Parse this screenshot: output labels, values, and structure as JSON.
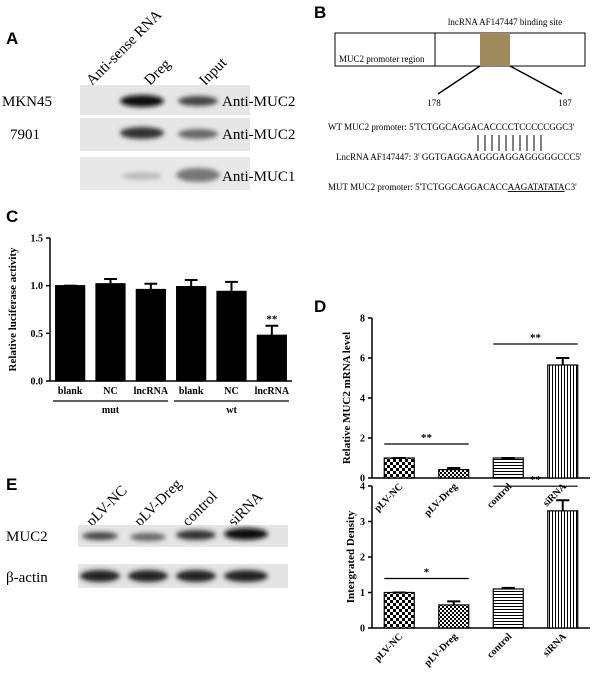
{
  "panel_a": {
    "label": "A",
    "columns": [
      "Anti-sense RNA",
      "Dreg",
      "Input"
    ],
    "rows": [
      {
        "cell_line": "MKN45",
        "antibody": "Anti-MUC2"
      },
      {
        "cell_line": "7901",
        "antibody": "Anti-MUC2"
      },
      {
        "antibody": "Anti-MUC1"
      }
    ]
  },
  "panel_b": {
    "label": "B",
    "site_label": "lncRNA AF147447 binding site",
    "region_label": "MUC2 promoter region",
    "start": 178,
    "end": 187,
    "wt": "WT MUC2 promoter: 5'TCTGGCAGGACACCCCTCCCCCGGC3'",
    "lnc": "LncRNA AF147447: 3' GGTGAGGAAGGGAGGAGGGGGCCC5'",
    "mut": {
      "prefix": "MUT MUC2 promoter: 5'TCTGGCAGGACACC",
      "mutated": "AAGATATATA",
      "suffix": "C3'"
    }
  },
  "panel_e_blot": {
    "label": "E",
    "lanes": [
      "pLV-NC",
      "pLV-Dreg",
      "control",
      "siRNA"
    ],
    "rows": [
      "MUC2",
      "β-actin"
    ]
  },
  "chart_data": [
    {
      "type": "bar",
      "panel_label": "C",
      "y_label": "Relative luciferase activity",
      "categories": [
        "blank",
        "NC",
        "lncRNA",
        "blank",
        "NC",
        "lncRNA"
      ],
      "group_labels": [
        "mut",
        "wt"
      ],
      "values": [
        1.0,
        1.02,
        0.96,
        0.99,
        0.94,
        0.48
      ],
      "errors": [
        0,
        0.05,
        0.06,
        0.07,
        0.1,
        0.1
      ],
      "color": "#000000",
      "ylim": [
        0,
        1.5
      ],
      "yticks": [
        {
          "value": 0,
          "label": "0.0"
        },
        0.5,
        {
          "value": 1,
          "label": "1.0"
        },
        1.5
      ],
      "annotations": [
        "**"
      ]
    },
    {
      "type": "bar",
      "panel_label": "D",
      "y_label": "Relative MUC2 mRNA level",
      "categories": [
        "pLV-NC",
        "pLV-Dreg",
        "control",
        "siRNA"
      ],
      "values": [
        1.0,
        0.42,
        1.0,
        5.65
      ],
      "errors": [
        0,
        0.08,
        0,
        0.35
      ],
      "patterns": [
        "checker",
        "checker-small",
        "hstripe",
        "vstripe"
      ],
      "color": "#000000",
      "ylim": [
        0,
        8
      ],
      "yticks": [
        0,
        2,
        4,
        6,
        8
      ],
      "annotations": [
        "**",
        "**"
      ]
    },
    {
      "type": "bar",
      "y_label": "Intergrated Density",
      "categories": [
        "pLV-NC",
        "pLV-Dreg",
        "control",
        "siRNA"
      ],
      "values": [
        1.0,
        0.65,
        1.1,
        3.3
      ],
      "errors": [
        0,
        0.1,
        0.03,
        0.3
      ],
      "patterns": [
        "checker",
        "checker-small",
        "hstripe",
        "vstripe"
      ],
      "color": "#000000",
      "ylim": [
        0,
        4
      ],
      "yticks": [
        0,
        1,
        2,
        3,
        4
      ],
      "annotations": [
        "*",
        "**"
      ]
    }
  ]
}
